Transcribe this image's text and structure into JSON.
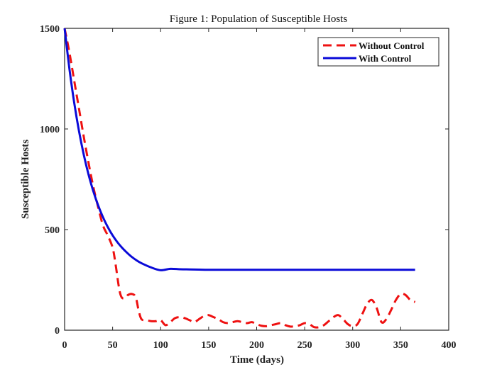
{
  "chart_data": {
    "type": "line",
    "title": "Figure 1: Population of Susceptible Hosts",
    "xlabel": "Time (days)",
    "ylabel": "Susceptible Hosts",
    "xlim": [
      0,
      400
    ],
    "ylim": [
      0,
      1500
    ],
    "xticks": [
      0,
      50,
      100,
      150,
      200,
      250,
      300,
      350,
      400
    ],
    "xtick_labels": [
      "0",
      "50",
      "100",
      "150",
      "200",
      "250",
      "300",
      "350",
      "400"
    ],
    "yticks": [
      0,
      500,
      1000,
      1500
    ],
    "ytick_labels": [
      "0",
      "500",
      "1000",
      "1500"
    ],
    "grid": false,
    "legend_position": "top-right",
    "series": [
      {
        "name": "Without Control",
        "color": "#ee1111",
        "style": "dashed",
        "x": [
          0,
          5,
          10,
          15,
          20,
          25,
          30,
          35,
          40,
          45,
          50,
          53,
          56,
          58,
          60,
          63,
          66,
          70,
          74,
          77,
          80,
          85,
          90,
          95,
          100,
          105,
          110,
          115,
          120,
          125,
          130,
          135,
          140,
          145,
          150,
          155,
          160,
          165,
          170,
          175,
          180,
          185,
          190,
          195,
          200,
          205,
          210,
          215,
          220,
          225,
          230,
          235,
          240,
          245,
          250,
          255,
          260,
          265,
          270,
          275,
          280,
          285,
          290,
          295,
          300,
          305,
          310,
          315,
          320,
          325,
          330,
          335,
          340,
          345,
          350,
          355,
          360,
          365
        ],
        "y": [
          1500,
          1380,
          1240,
          1100,
          960,
          830,
          710,
          610,
          520,
          470,
          410,
          330,
          230,
          180,
          160,
          160,
          175,
          180,
          165,
          100,
          55,
          50,
          45,
          45,
          50,
          25,
          40,
          60,
          65,
          60,
          50,
          40,
          55,
          70,
          75,
          65,
          55,
          40,
          35,
          40,
          45,
          40,
          35,
          40,
          30,
          22,
          20,
          25,
          30,
          35,
          25,
          18,
          20,
          25,
          35,
          30,
          15,
          15,
          25,
          45,
          65,
          75,
          55,
          30,
          20,
          30,
          80,
          130,
          150,
          110,
          40,
          55,
          100,
          150,
          180,
          175,
          150,
          140
        ]
      },
      {
        "name": "With Control",
        "color": "#0a0ad8",
        "style": "solid",
        "x": [
          0,
          5,
          10,
          15,
          20,
          25,
          30,
          35,
          40,
          45,
          50,
          55,
          60,
          65,
          70,
          75,
          80,
          90,
          100,
          110,
          120,
          130,
          140,
          150,
          175,
          200,
          250,
          300,
          365
        ],
        "y": [
          1500,
          1299,
          1130,
          989,
          871,
          772,
          689,
          619,
          561,
          512,
          471,
          437,
          409,
          385,
          364,
          347,
          333,
          312,
          298,
          305,
          303,
          302,
          301,
          300,
          300,
          300,
          300,
          300,
          300
        ]
      }
    ]
  }
}
